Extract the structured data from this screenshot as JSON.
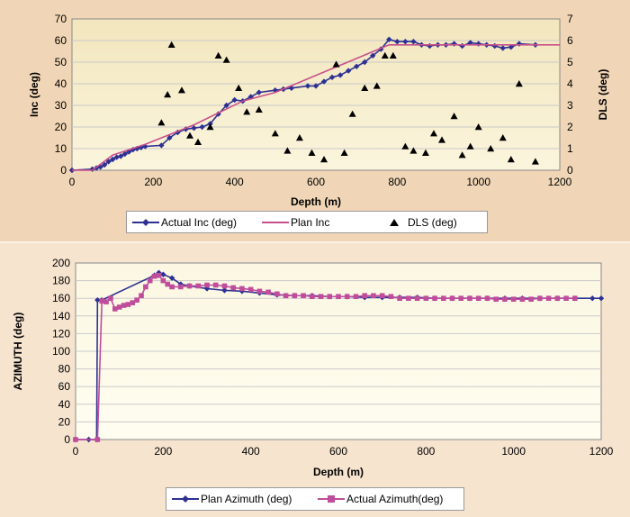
{
  "colors": {
    "actual_inc": "#2e3192",
    "plan_inc": "#c8508a",
    "dls": "#000000",
    "plan_az": "#2e3192",
    "actual_az": "#c04c9c",
    "grid": "#c9c9c9",
    "plot_top": "#f4e9c4",
    "plot_bottom": "#fffbe6"
  },
  "chart_data": [
    {
      "type": "line",
      "title": "",
      "xlabel": "Depth (m)",
      "ylabel": "Inc (deg)",
      "y2label": "DLS (deg)",
      "xlim": [
        0,
        1200
      ],
      "ylim": [
        0,
        70
      ],
      "y2lim": [
        0,
        7
      ],
      "xticks": [
        "0",
        "200",
        "400",
        "600",
        "800",
        "1000",
        "1200"
      ],
      "yticks": [
        "0",
        "10",
        "20",
        "30",
        "40",
        "50",
        "60",
        "70"
      ],
      "y2ticks": [
        "0",
        "1",
        "2",
        "3",
        "4",
        "5",
        "6",
        "7"
      ],
      "grid": "horizontal",
      "legend_position": "below",
      "series": [
        {
          "name": "Actual Inc (deg)",
          "axis": "left",
          "marker": "diamond",
          "x": [
            0,
            50,
            60,
            70,
            80,
            90,
            100,
            110,
            120,
            130,
            140,
            150,
            160,
            170,
            180,
            220,
            240,
            260,
            280,
            300,
            320,
            340,
            360,
            380,
            400,
            420,
            440,
            460,
            500,
            520,
            540,
            580,
            600,
            620,
            640,
            660,
            680,
            700,
            720,
            740,
            760,
            780,
            800,
            820,
            840,
            860,
            880,
            900,
            920,
            940,
            960,
            980,
            1000,
            1020,
            1040,
            1060,
            1080,
            1100,
            1140
          ],
          "y": [
            0,
            0.5,
            1,
            1.5,
            2.5,
            4,
            5,
            6,
            6.5,
            7.5,
            8.5,
            9.5,
            10,
            10.5,
            11,
            11.5,
            15,
            17.5,
            19,
            19.5,
            20,
            21.5,
            26,
            30,
            32.5,
            32,
            34,
            36,
            37,
            37.5,
            38,
            39,
            39,
            41,
            43,
            44,
            46,
            48,
            50,
            53,
            56,
            60.5,
            59.5,
            59.5,
            59.5,
            58,
            57.5,
            58,
            58,
            58.5,
            57.5,
            59,
            58.5,
            58,
            57.5,
            56.5,
            57,
            58.5,
            58
          ]
        },
        {
          "name": "Plan Inc",
          "axis": "left",
          "marker": "none",
          "x": [
            0,
            50,
            100,
            180,
            300,
            420,
            500,
            780,
            1200
          ],
          "y": [
            0,
            0,
            7,
            12,
            21,
            32,
            36,
            58,
            58
          ]
        },
        {
          "name": "DLS (deg)",
          "axis": "right",
          "marker": "triangle",
          "x": [
            220,
            235,
            245,
            270,
            290,
            310,
            340,
            360,
            380,
            410,
            430,
            460,
            500,
            530,
            560,
            590,
            620,
            650,
            670,
            690,
            720,
            750,
            770,
            790,
            820,
            840,
            870,
            890,
            910,
            940,
            960,
            980,
            1000,
            1030,
            1060,
            1080,
            1100,
            1140
          ],
          "y": [
            2.2,
            3.5,
            5.8,
            3.7,
            1.6,
            1.3,
            2,
            5.3,
            5.1,
            3.8,
            2.7,
            2.8,
            1.7,
            0.9,
            1.5,
            0.8,
            0.5,
            4.9,
            0.8,
            2.6,
            3.8,
            3.9,
            5.3,
            5.3,
            1.1,
            0.9,
            0.8,
            1.7,
            1.4,
            2.5,
            0.7,
            1.1,
            2,
            1,
            1.5,
            0.5,
            4,
            0.4
          ]
        }
      ],
      "legend": [
        "Actual Inc (deg)",
        "Plan Inc",
        "DLS (deg)"
      ]
    },
    {
      "type": "line",
      "title": "",
      "xlabel": "Depth (m)",
      "ylabel": "AZIMUTH (deg)",
      "xlim": [
        0,
        1200
      ],
      "ylim": [
        0,
        200
      ],
      "xticks": [
        "0",
        "200",
        "400",
        "600",
        "800",
        "1000",
        "1200"
      ],
      "yticks": [
        "0",
        "20",
        "40",
        "60",
        "80",
        "100",
        "120",
        "140",
        "160",
        "180",
        "200"
      ],
      "grid": "horizontal",
      "legend_position": "below",
      "series": [
        {
          "name": "Plan Azimuth (deg)",
          "marker": "diamond",
          "x": [
            0,
            30,
            48,
            50,
            60,
            180,
            190,
            200,
            220,
            240,
            260,
            300,
            340,
            380,
            420,
            460,
            500,
            540,
            580,
            620,
            660,
            700,
            740,
            780,
            820,
            860,
            900,
            940,
            980,
            1020,
            1060,
            1100,
            1140,
            1180,
            1200
          ],
          "y": [
            0,
            0,
            0,
            158,
            158,
            186,
            189,
            187,
            183,
            176,
            174,
            171,
            169,
            168,
            166,
            164,
            163,
            163,
            162,
            162,
            161,
            161,
            161,
            161,
            160,
            160,
            160,
            160,
            160,
            160,
            160,
            160,
            160,
            160,
            160
          ]
        },
        {
          "name": "Actual Azimuth(deg)",
          "marker": "square",
          "x": [
            0,
            50,
            60,
            70,
            80,
            90,
            100,
            110,
            120,
            130,
            140,
            150,
            160,
            170,
            180,
            190,
            200,
            210,
            220,
            240,
            260,
            280,
            300,
            320,
            340,
            360,
            380,
            400,
            420,
            440,
            460,
            480,
            500,
            520,
            540,
            560,
            580,
            600,
            620,
            640,
            660,
            680,
            700,
            720,
            740,
            760,
            780,
            800,
            820,
            840,
            860,
            880,
            900,
            920,
            940,
            960,
            980,
            1000,
            1020,
            1040,
            1060,
            1080,
            1100,
            1120,
            1140
          ],
          "y": [
            0,
            0,
            157,
            156,
            160,
            148,
            150,
            152,
            153,
            155,
            158,
            163,
            173,
            180,
            185,
            186,
            180,
            176,
            173,
            173,
            174,
            174,
            175,
            175,
            174,
            172,
            171,
            170,
            168,
            167,
            165,
            163,
            163,
            163,
            162,
            162,
            162,
            162,
            162,
            162,
            163,
            163,
            163,
            162,
            160,
            160,
            160,
            160,
            160,
            160,
            160,
            160,
            160,
            160,
            160,
            159,
            159,
            159,
            159,
            159,
            160,
            160,
            160,
            160,
            160
          ]
        }
      ],
      "legend": [
        "Plan Azimuth (deg)",
        "Actual Azimuth(deg)"
      ]
    }
  ]
}
